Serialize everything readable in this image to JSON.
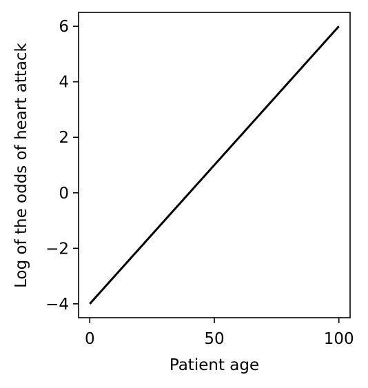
{
  "chart_data": {
    "type": "line",
    "title": "",
    "xlabel": "Patient age",
    "ylabel": "Log of the odds of heart attack",
    "xlim": [
      -4.5,
      104.5
    ],
    "ylim": [
      -4.5,
      6.5
    ],
    "x_ticks": [
      0,
      50,
      100
    ],
    "y_ticks": [
      -4,
      -2,
      0,
      2,
      4,
      6
    ],
    "x_tick_labels": [
      "0",
      "50",
      "100"
    ],
    "y_tick_labels": [
      "−4",
      "−2",
      "0",
      "2",
      "4",
      "6"
    ],
    "grid": false,
    "legend": false,
    "series": [
      {
        "x": [
          0,
          100
        ],
        "y": [
          -4,
          6
        ],
        "color": "#000000"
      }
    ]
  }
}
